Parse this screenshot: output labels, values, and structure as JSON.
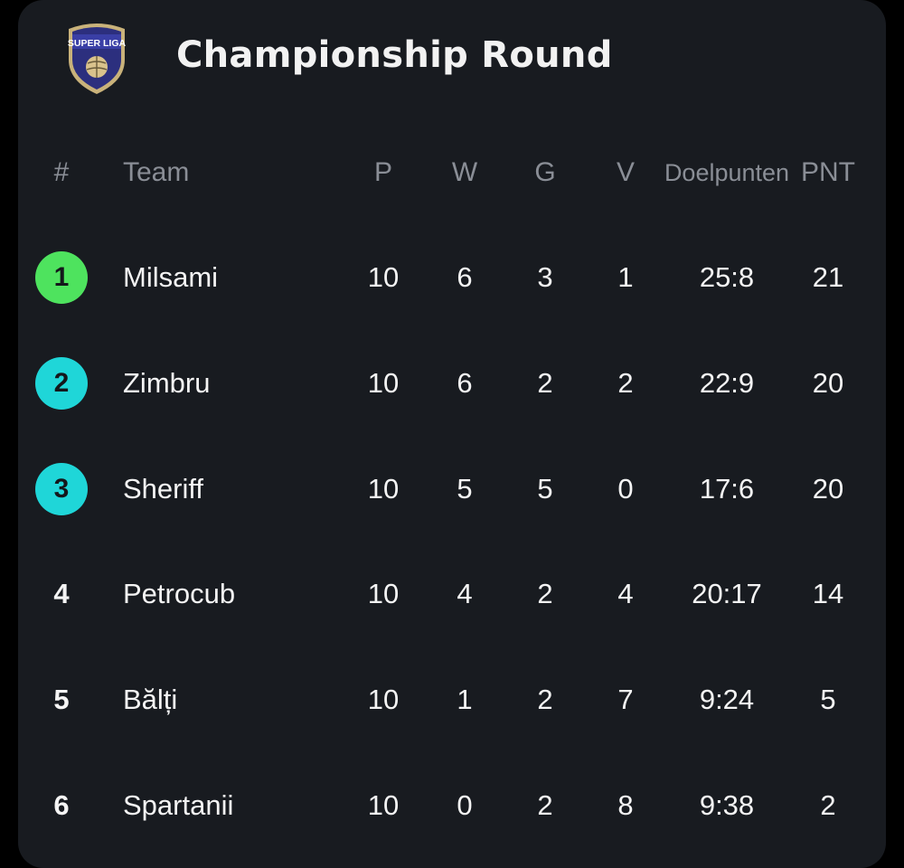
{
  "header": {
    "title": "Championship Round",
    "logo_text": "SUPER LIGA"
  },
  "columns": {
    "rank": "#",
    "team": "Team",
    "played": "P",
    "won": "W",
    "drawn": "G",
    "lost": "V",
    "goals": "Doelpunten",
    "points": "PNT"
  },
  "rows": [
    {
      "rank": "1",
      "team": "Milsami",
      "played": "10",
      "won": "6",
      "drawn": "3",
      "lost": "1",
      "goals": "25:8",
      "points": "21",
      "badge_color": "#4ee35e"
    },
    {
      "rank": "2",
      "team": "Zimbru",
      "played": "10",
      "won": "6",
      "drawn": "2",
      "lost": "2",
      "goals": "22:9",
      "points": "20",
      "badge_color": "#1fd6d8"
    },
    {
      "rank": "3",
      "team": "Sheriff",
      "played": "10",
      "won": "5",
      "drawn": "5",
      "lost": "0",
      "goals": "17:6",
      "points": "20",
      "badge_color": "#1fd6d8"
    },
    {
      "rank": "4",
      "team": "Petrocub",
      "played": "10",
      "won": "4",
      "drawn": "2",
      "lost": "4",
      "goals": "20:17",
      "points": "14",
      "badge_color": ""
    },
    {
      "rank": "5",
      "team": "Bălți",
      "played": "10",
      "won": "1",
      "drawn": "2",
      "lost": "7",
      "goals": "9:24",
      "points": "5",
      "badge_color": ""
    },
    {
      "rank": "6",
      "team": "Spartanii",
      "played": "10",
      "won": "0",
      "drawn": "2",
      "lost": "8",
      "goals": "9:38",
      "points": "2",
      "badge_color": ""
    }
  ],
  "colors": {
    "background": "#181b20",
    "text": "#f4f4f4",
    "header_text": "#8a8e96",
    "champion_badge": "#4ee35e",
    "qualify_badge": "#1fd6d8"
  }
}
